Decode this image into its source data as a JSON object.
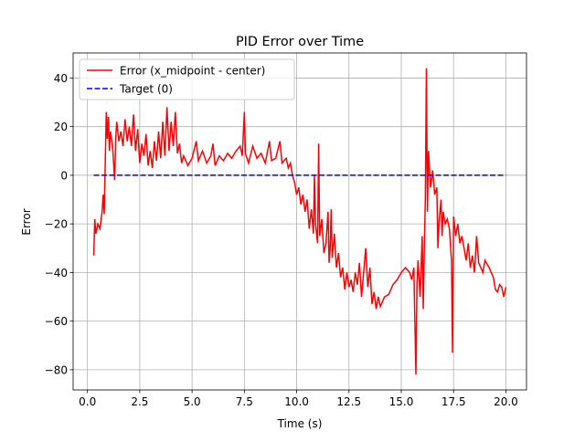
{
  "chart_data": {
    "type": "line",
    "title": "PID Error over Time",
    "xlabel": "Time (s)",
    "ylabel": "Error",
    "xlim": [
      -0.685,
      20.985
    ],
    "ylim": [
      -88.3,
      50.3
    ],
    "xticks": [
      {
        "value": 0,
        "label": "0.0"
      },
      2.5,
      {
        "value": 5,
        "label": "5.0"
      },
      7.5,
      {
        "value": 10,
        "label": "10.0"
      },
      12.5,
      {
        "value": 15,
        "label": "15.0"
      },
      17.5,
      {
        "value": 20,
        "label": "20.0"
      }
    ],
    "yticks": [
      {
        "value": -80,
        "label": "−80"
      },
      {
        "value": -60,
        "label": "−60"
      },
      {
        "value": -40,
        "label": "−40"
      },
      {
        "value": -20,
        "label": "−20"
      },
      0,
      20,
      40
    ],
    "grid": true,
    "legend": "upper left",
    "series": [
      {
        "name": "Error (x_midpoint - center)",
        "color": "#ff0000",
        "linestyle": "solid",
        "x": [
          0.3,
          0.35,
          0.4,
          0.5,
          0.6,
          0.7,
          0.75,
          0.8,
          0.85,
          0.9,
          0.95,
          1.0,
          1.05,
          1.1,
          1.2,
          1.3,
          1.35,
          1.4,
          1.5,
          1.6,
          1.7,
          1.8,
          1.9,
          2.0,
          2.1,
          2.2,
          2.3,
          2.4,
          2.5,
          2.6,
          2.7,
          2.8,
          2.9,
          3.0,
          3.1,
          3.2,
          3.3,
          3.4,
          3.5,
          3.6,
          3.7,
          3.8,
          3.9,
          4.0,
          4.1,
          4.2,
          4.3,
          4.4,
          4.5,
          4.6,
          4.8,
          5.0,
          5.2,
          5.3,
          5.5,
          5.7,
          5.9,
          6.0,
          6.1,
          6.3,
          6.5,
          6.7,
          6.9,
          7.1,
          7.3,
          7.4,
          7.5,
          7.55,
          7.7,
          7.9,
          8.1,
          8.3,
          8.5,
          8.7,
          8.8,
          9.0,
          9.2,
          9.3,
          9.5,
          9.6,
          9.7,
          9.8,
          9.9,
          10.0,
          10.1,
          10.2,
          10.3,
          10.4,
          10.5,
          10.6,
          10.7,
          10.8,
          10.85,
          10.9,
          11.0,
          11.05,
          11.1,
          11.2,
          11.3,
          11.4,
          11.5,
          11.55,
          11.6,
          11.65,
          11.7,
          11.8,
          11.9,
          12.0,
          12.1,
          12.2,
          12.3,
          12.4,
          12.5,
          12.6,
          12.7,
          12.8,
          12.9,
          13.0,
          13.1,
          13.2,
          13.3,
          13.4,
          13.5,
          13.6,
          13.7,
          13.8,
          13.9,
          14.0,
          14.2,
          14.4,
          14.6,
          14.8,
          15.0,
          15.2,
          15.4,
          15.5,
          15.6,
          15.65,
          15.7,
          15.75,
          15.8,
          15.9,
          16.0,
          16.05,
          16.1,
          16.15,
          16.2,
          16.25,
          16.3,
          16.4,
          16.5,
          16.6,
          16.7,
          16.75,
          16.8,
          16.9,
          16.95,
          17.0,
          17.1,
          17.2,
          17.3,
          17.4,
          17.45,
          17.5,
          17.6,
          17.7,
          17.8,
          17.9,
          18.0,
          18.1,
          18.2,
          18.3,
          18.4,
          18.5,
          18.6,
          18.7,
          18.8,
          18.9,
          19.0,
          19.2,
          19.4,
          19.5,
          19.6,
          19.7,
          19.8,
          19.9,
          20.0
        ],
        "values": [
          -33,
          -18,
          -24,
          -20,
          -22,
          -15,
          -8,
          -16,
          5,
          26,
          15,
          24,
          10,
          18,
          12,
          -2,
          15,
          22,
          14,
          18,
          12,
          23,
          14,
          20,
          12,
          25,
          10,
          19,
          5,
          13,
          8,
          17,
          4,
          10,
          3,
          14,
          6,
          18,
          7,
          22,
          8,
          28,
          10,
          22,
          12,
          26,
          9,
          13,
          5,
          8,
          4,
          7,
          14,
          6,
          10,
          5,
          8,
          13,
          4,
          8,
          6,
          9,
          7,
          10,
          12,
          8,
          26,
          9,
          5,
          12,
          7,
          9,
          5,
          14,
          6,
          7,
          14,
          5,
          7,
          3,
          5,
          0,
          -3,
          -8,
          -5,
          -12,
          -8,
          -15,
          -10,
          -22,
          -14,
          -24,
          0,
          -20,
          -28,
          13,
          -25,
          -18,
          -32,
          -28,
          -15,
          -36,
          -30,
          -14,
          -34,
          -24,
          -38,
          -32,
          -42,
          -38,
          -47,
          -40,
          -46,
          -43,
          -48,
          -40,
          -45,
          -36,
          -50,
          -40,
          -30,
          -46,
          -38,
          -53,
          -48,
          -55,
          -50,
          -54,
          -50,
          -49,
          -45,
          -43,
          -40,
          -38,
          -40,
          -43,
          -38,
          -60,
          -82,
          -45,
          -35,
          -50,
          -25,
          -55,
          -30,
          -10,
          44,
          -15,
          10,
          -5,
          2,
          -8,
          -5,
          -30,
          -20,
          -10,
          -25,
          -15,
          -20,
          -18,
          -22,
          -35,
          -73,
          -17,
          -25,
          -20,
          -28,
          -25,
          -30,
          -35,
          -28,
          -38,
          -33,
          -40,
          -25,
          -36,
          -38,
          -40,
          -35,
          -38,
          -42,
          -47,
          -48,
          -45,
          -46,
          -50,
          -46
        ]
      },
      {
        "name": "Target (0)",
        "color": "#0000ff",
        "linestyle": "dashed",
        "x": [
          0.3,
          20
        ],
        "values": [
          0,
          0
        ]
      }
    ]
  }
}
